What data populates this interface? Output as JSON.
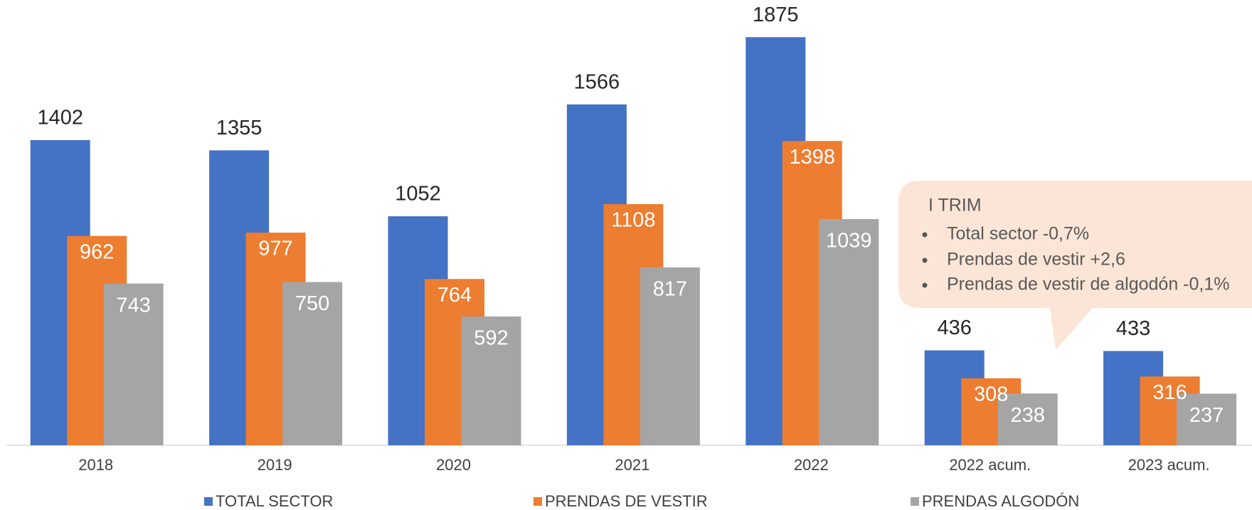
{
  "chart_data": {
    "type": "bar",
    "categories": [
      "2018",
      "2019",
      "2020",
      "2021",
      "2022",
      "2022 acum.",
      "2023 acum."
    ],
    "series": [
      {
        "name": "TOTAL SECTOR",
        "color": "#4472c4",
        "values": [
          1402,
          1355,
          1052,
          1566,
          1875,
          436,
          433
        ]
      },
      {
        "name": "PRENDAS DE VESTIR",
        "color": "#ed7d31",
        "values": [
          962,
          977,
          764,
          1108,
          1398,
          308,
          316
        ]
      },
      {
        "name": "PRENDAS ALGODÓN",
        "color": "#a5a5a5",
        "values": [
          743,
          750,
          592,
          817,
          1039,
          238,
          237
        ]
      }
    ],
    "ylim": [
      0,
      2000
    ],
    "legend": "bottom",
    "annotation": {
      "title": "I TRIM",
      "items": [
        "Total sector -0,7%",
        "Prendas de vestir +2,6",
        "Prendas de vestir de algodón -0,1%"
      ]
    }
  }
}
